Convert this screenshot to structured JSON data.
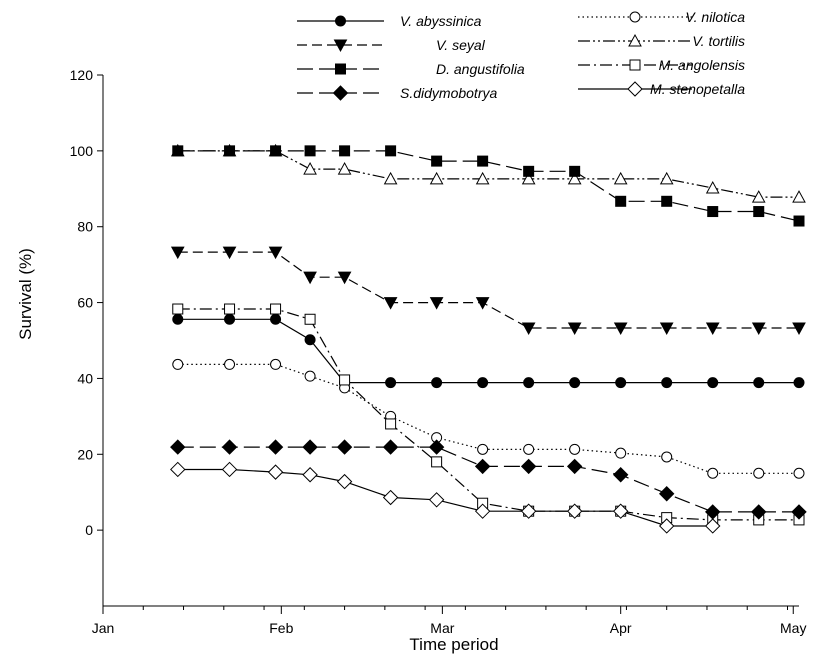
{
  "chart_data": {
    "type": "line",
    "title": "",
    "xlabel": "Time period",
    "ylabel": "Survival (%)",
    "ylim": [
      -20,
      120
    ],
    "yticks": [
      0,
      20,
      40,
      60,
      80,
      100,
      120
    ],
    "xlim_days": [
      0,
      121
    ],
    "xticks": [
      {
        "label": "Jan",
        "day": 0
      },
      {
        "label": "Feb",
        "day": 31
      },
      {
        "label": "Mar",
        "day": 59
      },
      {
        "label": "Apr",
        "day": 90
      },
      {
        "label": "May",
        "day": 120
      }
    ],
    "grid": false,
    "legend_position": "top",
    "series": [
      {
        "name": "V. abyssinica",
        "marker": "circle-filled",
        "dash": "solid",
        "x": [
          13,
          22,
          30,
          36,
          42,
          50,
          58,
          66,
          74,
          82,
          90,
          98,
          106,
          114,
          121
        ],
        "y": [
          55.6,
          55.6,
          55.6,
          50.2,
          38.9,
          38.9,
          38.9,
          38.9,
          38.9,
          38.9,
          38.9,
          38.9,
          38.9,
          38.9,
          38.9
        ]
      },
      {
        "name": "V. nilotica",
        "marker": "circle-open",
        "dash": "dotted",
        "x": [
          13,
          22,
          30,
          36,
          42,
          50,
          58,
          66,
          74,
          82,
          90,
          98,
          106,
          114,
          121
        ],
        "y": [
          43.7,
          43.7,
          43.7,
          40.6,
          37.5,
          30.0,
          24.4,
          21.3,
          21.3,
          21.3,
          20.3,
          19.3,
          15.0,
          15.0,
          15.0
        ]
      },
      {
        "name": "V. seyal",
        "marker": "triangle-down-filled",
        "dash": "dash",
        "x": [
          13,
          22,
          30,
          36,
          42,
          50,
          58,
          66,
          74,
          82,
          90,
          98,
          106,
          114,
          121
        ],
        "y": [
          73.3,
          73.3,
          73.3,
          66.7,
          66.7,
          60.0,
          60.0,
          60.0,
          53.3,
          53.3,
          53.3,
          53.3,
          53.3,
          53.3,
          53.3
        ]
      },
      {
        "name": "V. tortilis",
        "marker": "triangle-up-open",
        "dash": "dashdotdot",
        "x": [
          13,
          22,
          30,
          36,
          42,
          50,
          58,
          66,
          74,
          82,
          90,
          98,
          106,
          114,
          121
        ],
        "y": [
          100,
          100,
          100,
          95.2,
          95.2,
          92.6,
          92.6,
          92.6,
          92.6,
          92.6,
          92.6,
          92.6,
          90.2,
          87.8,
          87.8
        ]
      },
      {
        "name": "D. angustifolia",
        "marker": "square-filled",
        "dash": "longdash",
        "x": [
          13,
          22,
          30,
          36,
          42,
          50,
          58,
          66,
          74,
          82,
          90,
          98,
          106,
          114,
          121
        ],
        "y": [
          100,
          100,
          100,
          100,
          100,
          100,
          97.3,
          97.3,
          94.6,
          94.6,
          86.7,
          86.7,
          84.0,
          84.0,
          81.5
        ]
      },
      {
        "name": "M. angolensis",
        "marker": "square-open",
        "dash": "dashdot",
        "x": [
          13,
          22,
          30,
          36,
          42,
          50,
          58,
          66,
          74,
          82,
          90,
          98,
          106,
          114,
          121
        ],
        "y": [
          58.3,
          58.3,
          58.3,
          55.6,
          39.6,
          28.0,
          18.0,
          7.1,
          5.0,
          5.0,
          5.0,
          3.3,
          2.7,
          2.7,
          2.7
        ]
      },
      {
        "name": "S.didymobotrya",
        "marker": "diamond-filled",
        "dash": "longdash",
        "x": [
          13,
          22,
          30,
          36,
          42,
          50,
          58,
          66,
          74,
          82,
          90,
          98,
          106,
          114,
          121
        ],
        "y": [
          21.9,
          21.9,
          21.9,
          21.9,
          21.9,
          21.9,
          21.9,
          16.8,
          16.8,
          16.8,
          14.6,
          9.6,
          4.8,
          4.8,
          4.8
        ]
      },
      {
        "name": "M. stenopetalla",
        "marker": "diamond-open",
        "dash": "solid",
        "x": [
          13,
          22,
          30,
          36,
          42,
          50,
          58,
          66,
          74,
          82,
          90,
          98,
          106
        ],
        "y": [
          16.0,
          16.0,
          15.3,
          14.6,
          12.8,
          8.6,
          8.0,
          5.0,
          5.0,
          5.0,
          5.0,
          1.1,
          1.1
        ]
      }
    ]
  }
}
